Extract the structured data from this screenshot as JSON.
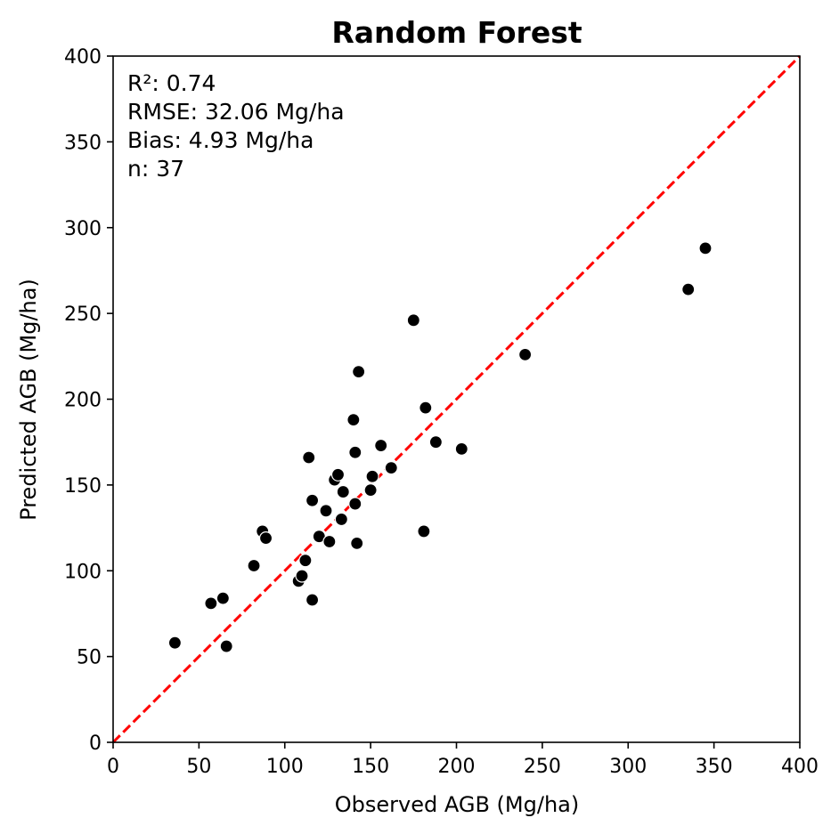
{
  "colors": {
    "point_fill": "#000000",
    "point_edge": "#ffffff",
    "reference_line": "#ff0000",
    "frame": "#000000"
  },
  "chart_data": {
    "type": "scatter",
    "title": "Random Forest",
    "xlabel": "Observed AGB (Mg/ha)",
    "ylabel": "Predicted AGB (Mg/ha)",
    "xlim": [
      0,
      400
    ],
    "ylim": [
      0,
      400
    ],
    "xticks": [
      "0",
      "50",
      "100",
      "150",
      "200",
      "250",
      "300",
      "350",
      "400"
    ],
    "yticks": [
      "0",
      "50",
      "100",
      "150",
      "200",
      "250",
      "300",
      "350",
      "400"
    ],
    "grid": false,
    "reference_line": {
      "style": "dashed",
      "from": [
        0,
        0
      ],
      "to": [
        400,
        400
      ]
    },
    "annotations": [
      "R²: 0.74",
      "RMSE: 32.06 Mg/ha",
      "Bias: 4.93 Mg/ha",
      "n: 37"
    ],
    "points": [
      {
        "x": 36,
        "y": 58
      },
      {
        "x": 57,
        "y": 81
      },
      {
        "x": 64,
        "y": 84
      },
      {
        "x": 66,
        "y": 56
      },
      {
        "x": 82,
        "y": 103
      },
      {
        "x": 87,
        "y": 123
      },
      {
        "x": 89,
        "y": 119
      },
      {
        "x": 108,
        "y": 94
      },
      {
        "x": 110,
        "y": 97
      },
      {
        "x": 112,
        "y": 106
      },
      {
        "x": 114,
        "y": 166
      },
      {
        "x": 116,
        "y": 141
      },
      {
        "x": 116,
        "y": 83
      },
      {
        "x": 120,
        "y": 120
      },
      {
        "x": 124,
        "y": 135
      },
      {
        "x": 126,
        "y": 117
      },
      {
        "x": 129,
        "y": 153
      },
      {
        "x": 131,
        "y": 156
      },
      {
        "x": 133,
        "y": 130
      },
      {
        "x": 134,
        "y": 146
      },
      {
        "x": 140,
        "y": 188
      },
      {
        "x": 141,
        "y": 169
      },
      {
        "x": 141,
        "y": 139
      },
      {
        "x": 142,
        "y": 116
      },
      {
        "x": 143,
        "y": 216
      },
      {
        "x": 150,
        "y": 147
      },
      {
        "x": 151,
        "y": 155
      },
      {
        "x": 156,
        "y": 173
      },
      {
        "x": 162,
        "y": 160
      },
      {
        "x": 175,
        "y": 246
      },
      {
        "x": 181,
        "y": 123
      },
      {
        "x": 182,
        "y": 195
      },
      {
        "x": 188,
        "y": 175
      },
      {
        "x": 203,
        "y": 171
      },
      {
        "x": 240,
        "y": 226
      },
      {
        "x": 335,
        "y": 264
      },
      {
        "x": 345,
        "y": 288
      }
    ]
  }
}
